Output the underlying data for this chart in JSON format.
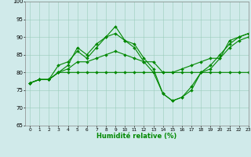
{
  "xlabel": "Humidité relative (%)",
  "xlim": [
    -0.5,
    23
  ],
  "ylim": [
    65,
    100
  ],
  "yticks": [
    65,
    70,
    75,
    80,
    85,
    90,
    95,
    100
  ],
  "xticks": [
    0,
    1,
    2,
    3,
    4,
    5,
    6,
    7,
    8,
    9,
    10,
    11,
    12,
    13,
    14,
    15,
    16,
    17,
    18,
    19,
    20,
    21,
    22,
    23
  ],
  "bg_color": "#d0eaea",
  "line_color": "#008800",
  "grid_color": "#99ccbb",
  "lines": [
    {
      "x": [
        0,
        1,
        2,
        3,
        4,
        5,
        6,
        7,
        8,
        9,
        10,
        11,
        12,
        13,
        14,
        15,
        16,
        17,
        18,
        19,
        20,
        21,
        22,
        23
      ],
      "y": [
        77,
        78,
        78,
        80,
        82,
        87,
        85,
        88,
        90,
        91,
        89,
        88,
        84,
        81,
        74,
        72,
        73,
        75,
        80,
        81,
        84,
        89,
        90,
        91
      ]
    },
    {
      "x": [
        0,
        1,
        2,
        3,
        4,
        5,
        6,
        7,
        8,
        9,
        10,
        11,
        12,
        13,
        14,
        15,
        16,
        17,
        18,
        19,
        20,
        21,
        22,
        23
      ],
      "y": [
        77,
        78,
        78,
        82,
        83,
        86,
        84,
        87,
        90,
        93,
        89,
        87,
        83,
        80,
        74,
        72,
        73,
        76,
        80,
        82,
        85,
        88,
        90,
        91
      ]
    },
    {
      "x": [
        0,
        1,
        2,
        3,
        4,
        5,
        6,
        7,
        8,
        9,
        10,
        11,
        12,
        13,
        14,
        15,
        16,
        17,
        18,
        19,
        20,
        21,
        22,
        23
      ],
      "y": [
        77,
        78,
        78,
        80,
        81,
        83,
        83,
        84,
        85,
        86,
        85,
        84,
        83,
        83,
        80,
        80,
        81,
        82,
        83,
        84,
        84,
        87,
        89,
        90
      ]
    },
    {
      "x": [
        0,
        1,
        2,
        3,
        4,
        5,
        6,
        7,
        8,
        9,
        10,
        11,
        12,
        13,
        14,
        15,
        16,
        17,
        18,
        19,
        20,
        21,
        22,
        23
      ],
      "y": [
        77,
        78,
        78,
        80,
        80,
        80,
        80,
        80,
        80,
        80,
        80,
        80,
        80,
        80,
        80,
        80,
        80,
        80,
        80,
        80,
        80,
        80,
        80,
        80
      ]
    }
  ]
}
